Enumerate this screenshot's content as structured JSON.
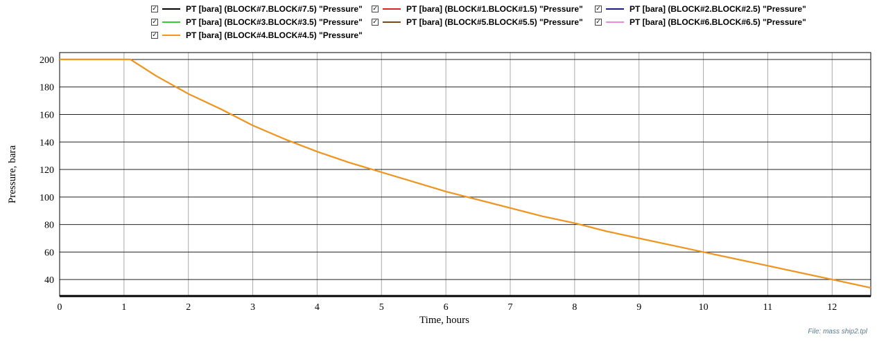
{
  "chart_data": {
    "type": "line",
    "xlabel": "Time, hours",
    "ylabel": "Pressure, bara",
    "xlim": [
      0,
      12.6
    ],
    "ylim": [
      28,
      205
    ],
    "xticks": [
      "0",
      "1",
      "2",
      "3",
      "4",
      "5",
      "6",
      "7",
      "8",
      "9",
      "10",
      "11",
      "12"
    ],
    "yticks": [
      "40",
      "60",
      "80",
      "100",
      "120",
      "140",
      "160",
      "180",
      "200"
    ],
    "grid": true,
    "legend_placement": "top",
    "series": [
      {
        "name": "PT [bara] (BLOCK#7.BLOCK#7.5) \"Pressure\"",
        "color": "#000000",
        "checked": true,
        "x": [
          0,
          1.1,
          1.5,
          2,
          2.5,
          3,
          3.5,
          4,
          4.5,
          5,
          5.5,
          6,
          6.5,
          7,
          7.5,
          8,
          8.5,
          9,
          9.5,
          10,
          10.5,
          11,
          11.5,
          12,
          12.6
        ],
        "y": [
          200,
          200,
          188,
          175,
          164,
          152,
          142,
          133,
          125,
          118,
          111,
          104,
          98,
          92,
          86,
          81,
          75,
          70,
          65,
          60,
          55,
          50,
          45,
          40,
          34
        ]
      },
      {
        "name": "PT [bara] (BLOCK#1.BLOCK#1.5) \"Pressure\"",
        "color": "#e02020",
        "checked": true,
        "x": [
          0,
          1.1,
          1.5,
          2,
          2.5,
          3,
          3.5,
          4,
          4.5,
          5,
          5.5,
          6,
          6.5,
          7,
          7.5,
          8,
          8.5,
          9,
          9.5,
          10,
          10.5,
          11,
          11.5,
          12,
          12.6
        ],
        "y": [
          200,
          200,
          188,
          175,
          164,
          152,
          142,
          133,
          125,
          118,
          111,
          104,
          98,
          92,
          86,
          81,
          75,
          70,
          65,
          60,
          55,
          50,
          45,
          40,
          34
        ]
      },
      {
        "name": "PT [bara] (BLOCK#2.BLOCK#2.5) \"Pressure\"",
        "color": "#1a1a8c",
        "checked": true,
        "x": [
          0,
          1.1,
          1.5,
          2,
          2.5,
          3,
          3.5,
          4,
          4.5,
          5,
          5.5,
          6,
          6.5,
          7,
          7.5,
          8,
          8.5,
          9,
          9.5,
          10,
          10.5,
          11,
          11.5,
          12,
          12.6
        ],
        "y": [
          200,
          200,
          188,
          175,
          164,
          152,
          142,
          133,
          125,
          118,
          111,
          104,
          98,
          92,
          86,
          81,
          75,
          70,
          65,
          60,
          55,
          50,
          45,
          40,
          34
        ]
      },
      {
        "name": "PT [bara] (BLOCK#3.BLOCK#3.5) \"Pressure\"",
        "color": "#33cc33",
        "checked": true,
        "x": [
          0,
          1.1,
          1.5,
          2,
          2.5,
          3,
          3.5,
          4,
          4.5,
          5,
          5.5,
          6,
          6.5,
          7,
          7.5,
          8,
          8.5,
          9,
          9.5,
          10,
          10.5,
          11,
          11.5,
          12,
          12.6
        ],
        "y": [
          200,
          200,
          188,
          175,
          164,
          152,
          142,
          133,
          125,
          118,
          111,
          104,
          98,
          92,
          86,
          81,
          75,
          70,
          65,
          60,
          55,
          50,
          45,
          40,
          34
        ]
      },
      {
        "name": "PT [bara] (BLOCK#5.BLOCK#5.5) \"Pressure\"",
        "color": "#7a4a10",
        "checked": true,
        "x": [
          0,
          1.1,
          1.5,
          2,
          2.5,
          3,
          3.5,
          4,
          4.5,
          5,
          5.5,
          6,
          6.5,
          7,
          7.5,
          8,
          8.5,
          9,
          9.5,
          10,
          10.5,
          11,
          11.5,
          12,
          12.6
        ],
        "y": [
          200,
          200,
          188,
          175,
          164,
          152,
          142,
          133,
          125,
          118,
          111,
          104,
          98,
          92,
          86,
          81,
          75,
          70,
          65,
          60,
          55,
          50,
          45,
          40,
          34
        ]
      },
      {
        "name": "PT [bara] (BLOCK#6.BLOCK#6.5) \"Pressure\"",
        "color": "#ee88dd",
        "checked": true,
        "x": [
          0,
          1.1,
          1.5,
          2,
          2.5,
          3,
          3.5,
          4,
          4.5,
          5,
          5.5,
          6,
          6.5,
          7,
          7.5,
          8,
          8.5,
          9,
          9.5,
          10,
          10.5,
          11,
          11.5,
          12,
          12.6
        ],
        "y": [
          200,
          200,
          188,
          175,
          164,
          152,
          142,
          133,
          125,
          118,
          111,
          104,
          98,
          92,
          86,
          81,
          75,
          70,
          65,
          60,
          55,
          50,
          45,
          40,
          34
        ]
      },
      {
        "name": "PT [bara] (BLOCK#4.BLOCK#4.5) \"Pressure\"",
        "color": "#f0961e",
        "checked": true,
        "x": [
          0,
          1.1,
          1.5,
          2,
          2.5,
          3,
          3.5,
          4,
          4.5,
          5,
          5.5,
          6,
          6.5,
          7,
          7.5,
          8,
          8.5,
          9,
          9.5,
          10,
          10.5,
          11,
          11.5,
          12,
          12.6
        ],
        "y": [
          200,
          200,
          188,
          175,
          164,
          152,
          142,
          133,
          125,
          118,
          111,
          104,
          98,
          92,
          86,
          81,
          75,
          70,
          65,
          60,
          55,
          50,
          45,
          40,
          34
        ]
      }
    ]
  },
  "footer": {
    "file_label": "File: mass ship2.tpl"
  }
}
